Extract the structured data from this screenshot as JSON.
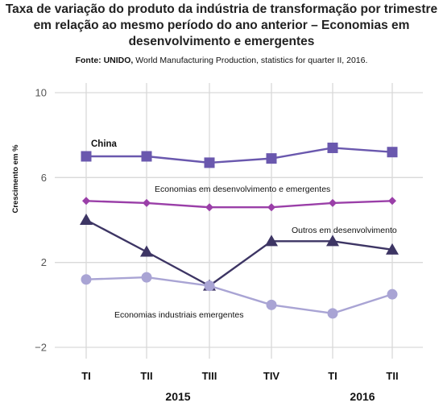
{
  "header": {
    "title_lines": [
      "Taxa de variação do produto da indústria de transformação por trimestre",
      "em relação ao mesmo período do ano anterior – Economias em",
      "desenvolvimento e emergentes"
    ],
    "source_bold": "Fonte: UNIDO,",
    "source_rest": " World Manufacturing Production, statistics for quarter II, 2016."
  },
  "chart_data": {
    "type": "line",
    "title": "Taxa de variação do produto da indústria de transformação por trimestre em relação ao mesmo período do ano anterior – Economias em desenvolvimento e emergentes",
    "ylabel": "Crescimento em %",
    "xlabel": "",
    "categories": [
      "TI",
      "TII",
      "TIII",
      "TIV",
      "TI",
      "TII"
    ],
    "year_labels": [
      {
        "label": "2015",
        "category_index": 1.5
      },
      {
        "label": "2016",
        "category_index": 4.5
      }
    ],
    "yticks": [
      10,
      6,
      2,
      -2
    ],
    "ytick_labels": [
      "10",
      "6",
      "2",
      "−2"
    ],
    "ylim": [
      -2.4,
      10.5
    ],
    "grid": "vertical and horizontal",
    "series": [
      {
        "name": "China",
        "values": [
          7.0,
          7.0,
          6.7,
          6.9,
          7.4,
          7.2
        ],
        "color": "#6a58ae",
        "marker": "square"
      },
      {
        "name": "Economias em desenvolvimento e emergentes",
        "values": [
          4.9,
          4.8,
          4.6,
          4.6,
          4.8,
          4.9
        ],
        "color": "#9a3fa8",
        "marker": "diamond"
      },
      {
        "name": "Outros em desenvolvimento",
        "values": [
          4.0,
          2.5,
          0.9,
          3.0,
          3.0,
          2.6
        ],
        "color": "#3d3564",
        "marker": "triangle"
      },
      {
        "name": "Economias industriais emergentes",
        "values": [
          1.2,
          1.3,
          0.9,
          0.0,
          -0.4,
          0.5
        ],
        "color": "#a9a4d4",
        "marker": "circle"
      }
    ]
  }
}
